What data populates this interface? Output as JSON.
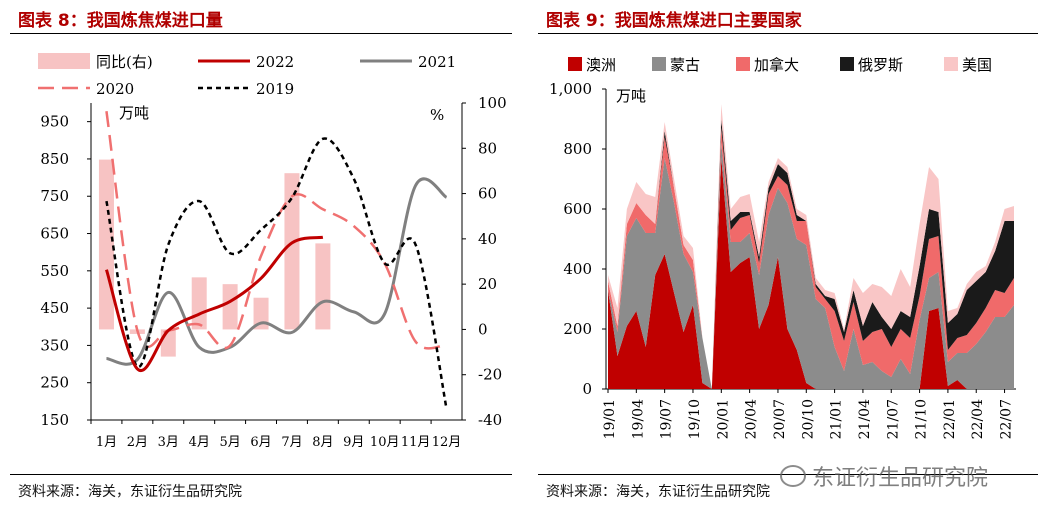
{
  "colors": {
    "title_red": "#b00000",
    "yoy": "#f7c3c3",
    "y2022": "#c00000",
    "y2021": "#808080",
    "y2020": "#f07070",
    "y2019": "#000000",
    "aus": "#c00000",
    "mng": "#8c8c8c",
    "can": "#f06a6a",
    "rus": "#1a1a1a",
    "usa": "#f9c6c6"
  },
  "watermark": "东证衍生品研究院",
  "panel1": {
    "title": "图表 8：我国炼焦煤进口量",
    "source": "资料来源：海关，东证衍生品研究院",
    "chart_data": {
      "type": "bar+line",
      "categories": [
        "1月",
        "2月",
        "3月",
        "4月",
        "5月",
        "6月",
        "7月",
        "8月",
        "9月",
        "10月",
        "11月",
        "12月"
      ],
      "ylabel_left": "万吨",
      "ylabel_right": "%",
      "ylim_left": [
        150,
        1000
      ],
      "yticks_left": [
        150,
        250,
        350,
        450,
        550,
        650,
        750,
        850,
        950
      ],
      "ylim_right": [
        -40,
        100
      ],
      "yticks_right": [
        -40,
        -20,
        0,
        20,
        40,
        60,
        80,
        100
      ],
      "legend": [
        "同比(右)",
        "2022",
        "2021",
        "2020",
        "2019"
      ],
      "yoy_bars": {
        "name": "同比(右)",
        "values": [
          75,
          -2,
          -12,
          23,
          20,
          14,
          69,
          38,
          null,
          null,
          null,
          null
        ]
      },
      "series": [
        {
          "name": "2022",
          "values": [
            553,
            287,
            390,
            434,
            468,
            530,
            625,
            640,
            null,
            null,
            null,
            null
          ]
        },
        {
          "name": "2021",
          "values": [
            315,
            312,
            492,
            345,
            345,
            410,
            385,
            467,
            440,
            435,
            779,
            747
          ]
        },
        {
          "name": "2020",
          "values": [
            978,
            390,
            390,
            406,
            350,
            590,
            750,
            715,
            670,
            570,
            360,
            352
          ]
        },
        {
          "name": "2019",
          "values": [
            737,
            293,
            620,
            737,
            597,
            660,
            746,
            904,
            797,
            570,
            620,
            180
          ]
        }
      ]
    }
  },
  "panel2": {
    "title": "图表 9：我国炼焦煤进口主要国家",
    "source": "资料来源：海关，东证衍生品研究院",
    "chart_data": {
      "type": "area",
      "stacked": true,
      "ylabel": "万吨",
      "ylim": [
        0,
        1000
      ],
      "yticks": [
        "0",
        "200",
        "400",
        "600",
        "800",
        "1,000"
      ],
      "tick_labels": [
        "19/01",
        "19/04",
        "19/07",
        "19/10",
        "20/01",
        "20/04",
        "20/07",
        "20/10",
        "21/01",
        "21/04",
        "21/07",
        "21/10",
        "22/01",
        "22/04",
        "22/07"
      ],
      "legend": [
        "澳洲",
        "蒙古",
        "加拿大",
        "俄罗斯",
        "美国"
      ],
      "x": [
        "19/01",
        "19/02",
        "19/03",
        "19/04",
        "19/05",
        "19/06",
        "19/07",
        "19/08",
        "19/09",
        "19/10",
        "19/11",
        "19/12",
        "20/01",
        "20/02",
        "20/03",
        "20/04",
        "20/05",
        "20/06",
        "20/07",
        "20/08",
        "20/09",
        "20/10",
        "20/11",
        "20/12",
        "21/01",
        "21/02",
        "21/03",
        "21/04",
        "21/05",
        "21/06",
        "21/07",
        "21/08",
        "21/09",
        "21/10",
        "21/11",
        "21/12",
        "22/01",
        "22/02",
        "22/03",
        "22/04",
        "22/05",
        "22/06",
        "22/07",
        "22/08"
      ],
      "series": [
        {
          "name": "澳洲",
          "values": [
            330,
            110,
            210,
            260,
            140,
            380,
            450,
            320,
            190,
            280,
            20,
            0,
            770,
            390,
            420,
            440,
            200,
            280,
            440,
            200,
            130,
            20,
            0,
            0,
            0,
            0,
            0,
            0,
            0,
            0,
            0,
            0,
            0,
            0,
            260,
            270,
            10,
            30,
            0,
            0,
            0,
            0,
            0,
            0
          ]
        },
        {
          "name": "蒙古",
          "values": [
            0,
            80,
            300,
            310,
            380,
            140,
            320,
            300,
            260,
            110,
            150,
            0,
            50,
            100,
            70,
            80,
            180,
            300,
            230,
            420,
            370,
            460,
            300,
            270,
            140,
            60,
            200,
            80,
            90,
            60,
            40,
            100,
            50,
            230,
            110,
            120,
            80,
            90,
            120,
            150,
            190,
            240,
            240,
            280
          ]
        },
        {
          "name": "加拿大",
          "values": [
            30,
            20,
            40,
            50,
            60,
            30,
            70,
            50,
            30,
            40,
            0,
            0,
            50,
            40,
            80,
            60,
            40,
            70,
            40,
            60,
            60,
            80,
            40,
            30,
            120,
            100,
            90,
            80,
            100,
            140,
            100,
            100,
            120,
            80,
            130,
            120,
            40,
            50,
            60,
            70,
            80,
            90,
            80,
            90
          ]
        },
        {
          "name": "俄罗斯",
          "values": [
            0,
            0,
            0,
            0,
            0,
            0,
            20,
            0,
            0,
            0,
            0,
            0,
            30,
            30,
            20,
            10,
            20,
            20,
            40,
            40,
            20,
            0,
            10,
            10,
            40,
            30,
            40,
            50,
            100,
            40,
            60,
            60,
            70,
            100,
            100,
            80,
            90,
            80,
            150,
            140,
            120,
            130,
            240,
            190
          ]
        },
        {
          "name": "美国",
          "values": [
            20,
            60,
            50,
            70,
            70,
            90,
            30,
            30,
            30,
            40,
            0,
            0,
            50,
            40,
            50,
            60,
            50,
            20,
            20,
            20,
            20,
            20,
            20,
            20,
            20,
            10,
            40,
            110,
            60,
            100,
            110,
            140,
            100,
            140,
            140,
            110,
            40,
            20,
            20,
            30,
            20,
            30,
            40,
            50
          ]
        }
      ]
    }
  }
}
